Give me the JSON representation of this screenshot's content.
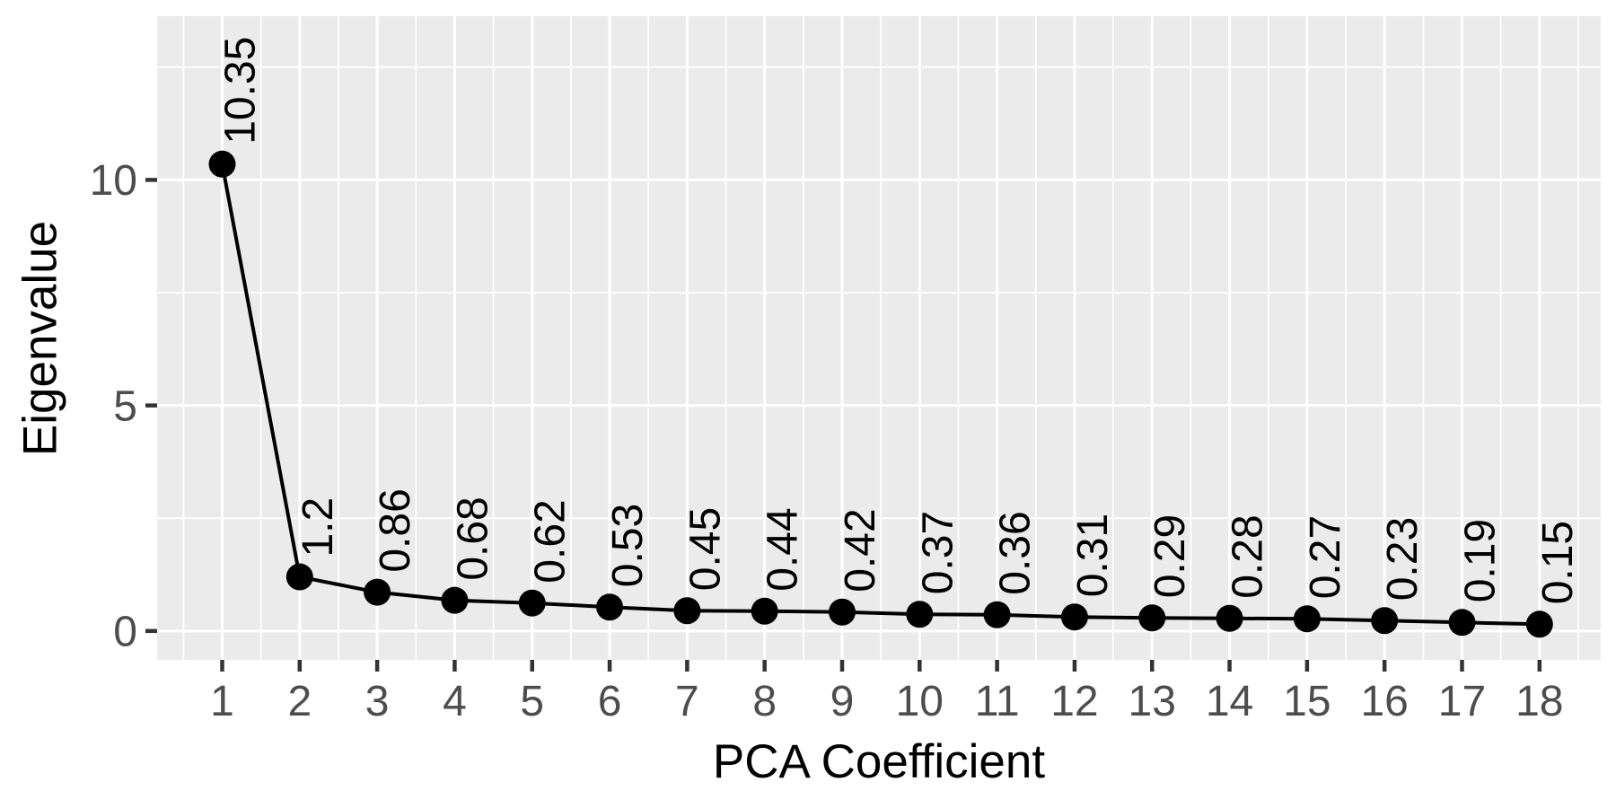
{
  "chart_data": {
    "type": "line",
    "title": "",
    "xlabel": "PCA Coefficient",
    "ylabel": "Eigenvalue",
    "x": [
      1,
      2,
      3,
      4,
      5,
      6,
      7,
      8,
      9,
      10,
      11,
      12,
      13,
      14,
      15,
      16,
      17,
      18
    ],
    "values": [
      10.35,
      1.2,
      0.86,
      0.68,
      0.62,
      0.53,
      0.45,
      0.44,
      0.42,
      0.37,
      0.36,
      0.31,
      0.29,
      0.28,
      0.27,
      0.23,
      0.19,
      0.15
    ],
    "point_labels": [
      "10.35",
      "1.2",
      "0.86",
      "0.68",
      "0.62",
      "0.53",
      "0.45",
      "0.44",
      "0.42",
      "0.37",
      "0.36",
      "0.31",
      "0.29",
      "0.28",
      "0.27",
      "0.23",
      "0.19",
      "0.15"
    ],
    "x_tick_labels": [
      "1",
      "2",
      "3",
      "4",
      "5",
      "6",
      "7",
      "8",
      "9",
      "10",
      "11",
      "12",
      "13",
      "14",
      "15",
      "16",
      "17",
      "18"
    ],
    "y_ticks": [
      0,
      5,
      10
    ],
    "y_tick_labels": [
      "0",
      "5",
      "10"
    ],
    "y_minor_ticks": [
      2.5,
      7.5,
      12.5
    ],
    "xlim": [
      0.16,
      18.79
    ],
    "ylim": [
      -0.64,
      13.63
    ],
    "grid": true,
    "legend": "none",
    "point_label_rotation_deg": -90,
    "colors": {
      "panel_background": "#EBEBEB",
      "gridline": "#FFFFFF",
      "line": "#000000",
      "point": "#000000",
      "point_label": "#000000",
      "tick_label": "#4D4D4D",
      "axis_title": "#000000",
      "tick_mark": "#333333",
      "figure_background": "#FFFFFF"
    }
  }
}
